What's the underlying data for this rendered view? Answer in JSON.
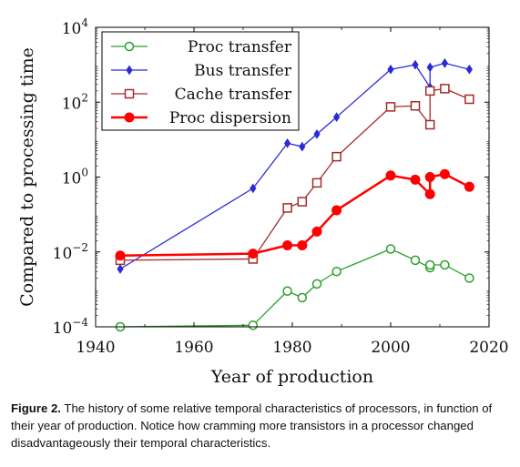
{
  "chart_data": {
    "type": "line",
    "xlabel": "Year of production",
    "ylabel": "Compared to processing time",
    "xlim": [
      1940,
      2020
    ],
    "ylim_exponent": [
      -4,
      4
    ],
    "yscale": "log",
    "xticks": [
      "1940",
      "1960",
      "1980",
      "2000",
      "2020"
    ],
    "yticks": [
      {
        "base": "10",
        "exp": "−4"
      },
      {
        "base": "10",
        "exp": "−2"
      },
      {
        "base": "10",
        "exp": "0"
      },
      {
        "base": "10",
        "exp": "2"
      },
      {
        "base": "10",
        "exp": "4"
      }
    ],
    "legend_position": "top-left",
    "series": [
      {
        "name": "Proc transfer",
        "color": "#2ca02c",
        "marker": "circle-open",
        "x": [
          1945,
          1972,
          1979,
          1982,
          1985,
          1989,
          2000,
          2005,
          2008,
          2008,
          2011,
          2016
        ],
        "y": [
          0.0001,
          0.00011,
          0.0009,
          0.0006,
          0.0014,
          0.003,
          0.012,
          0.006,
          0.0038,
          0.0045,
          0.0045,
          0.002
        ]
      },
      {
        "name": "Bus transfer",
        "color": "#2a2ad8",
        "marker": "diamond",
        "x": [
          1945,
          1972,
          1979,
          1982,
          1985,
          1989,
          2000,
          2005,
          2008,
          2008,
          2011,
          2016
        ],
        "y": [
          0.0035,
          0.5,
          8,
          6.5,
          14,
          40,
          750,
          1000,
          250,
          850,
          1100,
          750
        ]
      },
      {
        "name": "Cache transfer",
        "color": "#a52a2a",
        "marker": "square-open",
        "x": [
          1945,
          1972,
          1979,
          1982,
          1985,
          1989,
          2000,
          2005,
          2008,
          2008,
          2011,
          2016
        ],
        "y": [
          0.006,
          0.0065,
          0.15,
          0.22,
          0.7,
          3.5,
          75,
          80,
          25,
          200,
          230,
          120
        ]
      },
      {
        "name": "Proc dispersion",
        "color": "#ff0000",
        "marker": "circle-filled",
        "x": [
          1945,
          1972,
          1979,
          1982,
          1985,
          1989,
          2000,
          2005,
          2008,
          2008,
          2011,
          2016
        ],
        "y": [
          0.008,
          0.009,
          0.015,
          0.015,
          0.035,
          0.13,
          1.1,
          0.85,
          0.35,
          1.0,
          1.2,
          0.55
        ]
      }
    ]
  },
  "caption": {
    "label": "Figure 2.",
    "text": " The history of some relative temporal characteristics of processors, in function of their year of production. Notice how cramming more transistors in a processor changed disadvantageously their temporal characteristics."
  }
}
